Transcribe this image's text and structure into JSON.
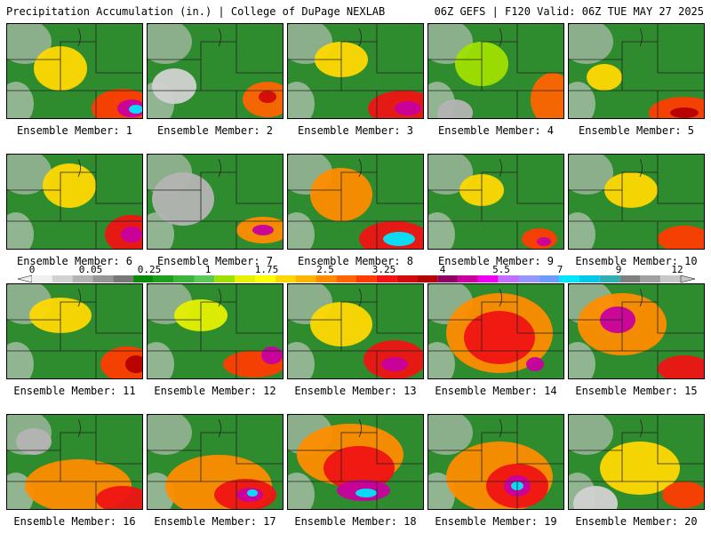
{
  "header": {
    "left": "Precipitation Accumulation (in.) | College of DuPage NEXLAB",
    "right": "06Z GEFS | F120 Valid: 06Z TUE MAY 27 2025"
  },
  "members": [
    {
      "label": "Ensemble Member: 1"
    },
    {
      "label": "Ensemble Member: 2"
    },
    {
      "label": "Ensemble Member: 3"
    },
    {
      "label": "Ensemble Member: 4"
    },
    {
      "label": "Ensemble Member: 5"
    },
    {
      "label": "Ensemble Member: 6"
    },
    {
      "label": "Ensemble Member: 7"
    },
    {
      "label": "Ensemble Member: 8"
    },
    {
      "label": "Ensemble Member: 9"
    },
    {
      "label": "Ensemble Member: 10"
    },
    {
      "label": "Ensemble Member: 11"
    },
    {
      "label": "Ensemble Member: 12"
    },
    {
      "label": "Ensemble Member: 13"
    },
    {
      "label": "Ensemble Member: 14"
    },
    {
      "label": "Ensemble Member: 15"
    },
    {
      "label": "Ensemble Member: 16"
    },
    {
      "label": "Ensemble Member: 17"
    },
    {
      "label": "Ensemble Member: 18"
    },
    {
      "label": "Ensemble Member: 19"
    },
    {
      "label": "Ensemble Member: 20"
    }
  ],
  "colorbar": {
    "labels": [
      "0",
      "0.05",
      "0.25",
      "1",
      "1.75",
      "2.5",
      "3.25",
      "4",
      "5.5",
      "7",
      "9",
      "12"
    ],
    "colors": [
      "#f0f0f0",
      "#d2d2d2",
      "#b4b4b4",
      "#969696",
      "#787878",
      "#0a8a0a",
      "#1e9e1e",
      "#3cb43c",
      "#5ac85a",
      "#a0e000",
      "#e6f000",
      "#ffff00",
      "#ffd800",
      "#ffb400",
      "#ff8c00",
      "#ff6400",
      "#ff3c00",
      "#f01414",
      "#d20a0a",
      "#b40000",
      "#900060",
      "#c800a0",
      "#f000f0",
      "#c070ff",
      "#9696ff",
      "#6e9bff",
      "#00e6ff",
      "#00c8e6",
      "#30b0b0",
      "#808080",
      "#a0a0a0",
      "#c8c8c8"
    ]
  }
}
